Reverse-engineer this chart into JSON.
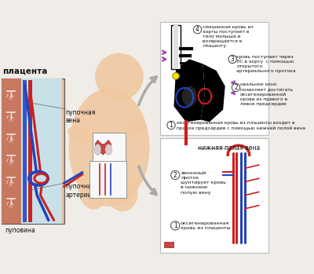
{
  "bg_color": "#f0ede8",
  "placenta_label": "плацента",
  "umbilical_vein_label": "пупочная\nвена",
  "umbilical_arteries_label": "пупочные\nартерии",
  "umbilicus_label": "пуповина",
  "top_box_labels": [
    "смешанная кровь из\nаорты поступает в\nтело малыша и\nвозвращается в\nплаценту",
    "кровь поступает через\nЛС в аорту  с помощью\nоткрытого\nартериального протока",
    "овальное окно\nпозволяет достигать\nоксигенированной\nкрови из правого в\nлевое предсердие",
    "оксигенированная кровь из плаценты входит в\nправое предсердие с помощью нижней полой вена"
  ],
  "bottom_box_title": "нижняя полая вена",
  "bottom_box_labels": [
    "венозный\nпроток\nшунтирует кровь\nв нижнюю\nполую вену",
    "оксигенированная\nкровь из плаценты"
  ],
  "top_box_numbers": [
    "4",
    "3",
    "2",
    "1"
  ],
  "bottom_box_numbers": [
    "2",
    "1"
  ],
  "red_color": "#cc2020",
  "blue_color": "#2244bb",
  "purple_color": "#9944aa",
  "yellow_color": "#ffe000",
  "gray_color": "#aaaaaa",
  "text_color": "#111111",
  "placenta_bg": "#e8b898",
  "placenta_tissue": "#c87860",
  "placenta_cavity": "#c8e0e8",
  "vein_blue": "#3355cc",
  "artery_red": "#cc2222",
  "baby_skin": "#f0c8a0",
  "box_bg": "#ffffff",
  "box_border": "#bbbbbb",
  "heart_black": "#111111"
}
